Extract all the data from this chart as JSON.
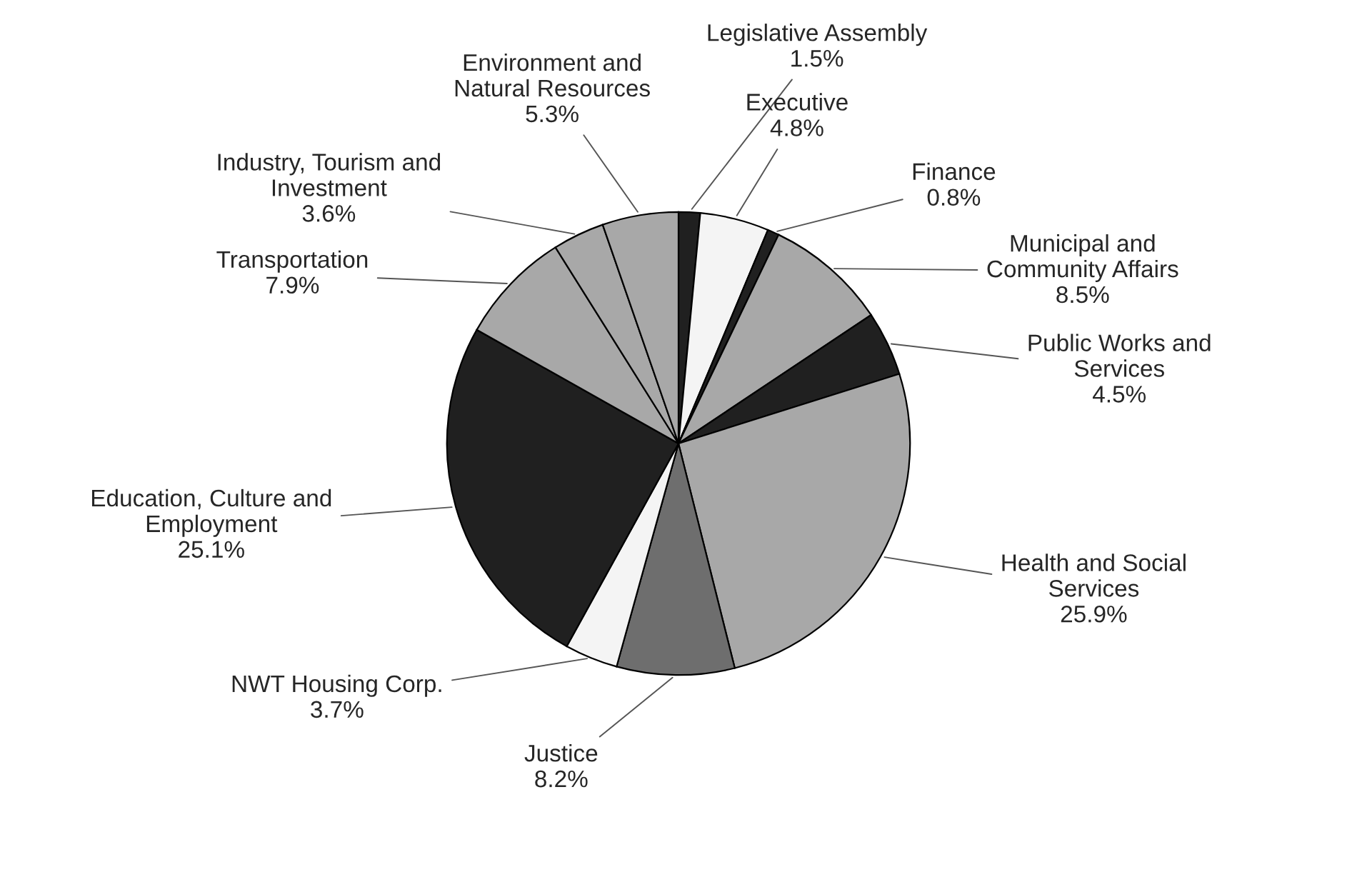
{
  "chart_data": {
    "type": "pie",
    "categories": [
      "Legislative Assembly",
      "Executive",
      "Finance",
      "Municipal and Community Affairs",
      "Public Works and Services",
      "Health and Social Services",
      "Justice",
      "NWT Housing Corp.",
      "Education, Culture and Employment",
      "Transportation",
      "Industry, Tourism and Investment",
      "Environment and Natural Resources"
    ],
    "values": [
      1.5,
      4.8,
      0.8,
      8.5,
      4.5,
      25.9,
      8.2,
      3.7,
      25.1,
      7.9,
      3.6,
      5.3
    ],
    "value_labels": [
      "1.5%",
      "4.8%",
      "0.8%",
      "8.5%",
      "4.5%",
      "25.9%",
      "8.2%",
      "3.7%",
      "25.1%",
      "7.9%",
      "3.6%",
      "5.3%"
    ],
    "colors": [
      "#202020",
      "#f4f4f4",
      "#202020",
      "#a8a8a8",
      "#202020",
      "#a8a8a8",
      "#6e6e6e",
      "#f4f4f4",
      "#202020",
      "#a8a8a8",
      "#a8a8a8",
      "#a8a8a8"
    ],
    "legend": false
  }
}
